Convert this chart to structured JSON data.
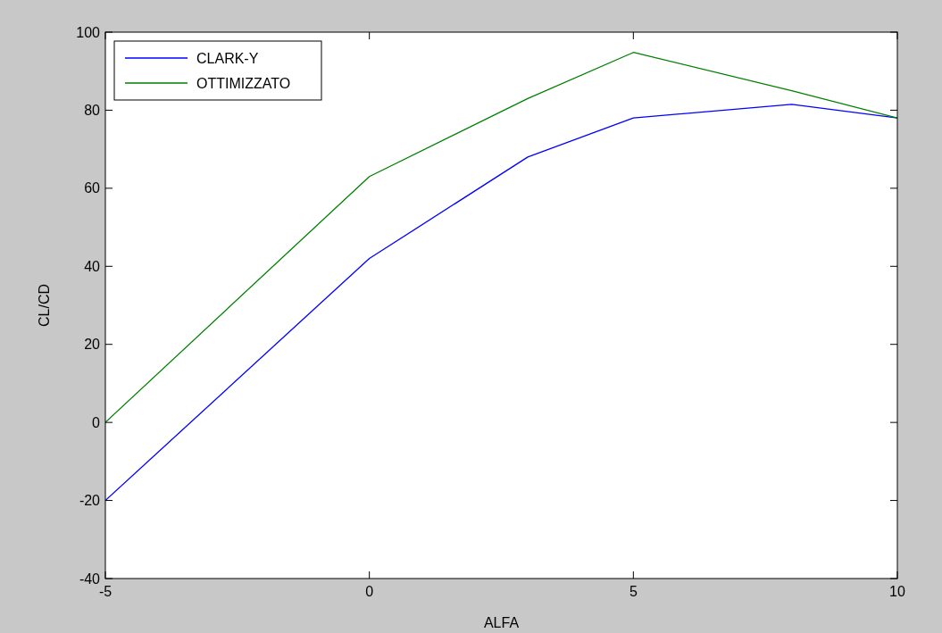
{
  "chart_data": {
    "type": "line",
    "xlabel": "ALFA",
    "ylabel": "CL/CD",
    "x": [
      -5,
      0,
      3,
      5,
      8,
      10
    ],
    "series": [
      {
        "name": "CLARK-Y",
        "color": "#0000ff",
        "values": [
          -20,
          42,
          68,
          78,
          81.5,
          78
        ]
      },
      {
        "name": "OTTIMIZZATO",
        "color": "#008000",
        "values": [
          0,
          63,
          83,
          94.8,
          85,
          78
        ]
      }
    ],
    "xlim": [
      -5,
      10
    ],
    "xticks": [
      -5,
      0,
      5,
      10
    ],
    "ylim": [
      -40,
      100
    ],
    "yticks": [
      -40,
      -20,
      0,
      20,
      40,
      60,
      80,
      100
    ],
    "grid": false,
    "legend": "top left",
    "marker": "none",
    "line_style": "solid"
  }
}
